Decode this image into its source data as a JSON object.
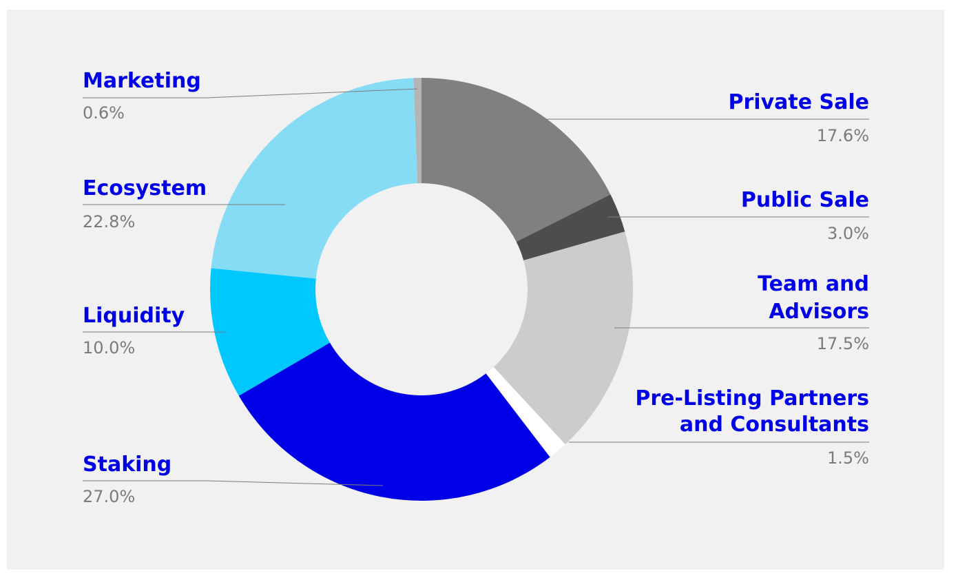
{
  "chart_data": {
    "type": "pie",
    "title": "",
    "donut": true,
    "slices": [
      {
        "label": "Private Sale",
        "value": 17.6,
        "value_label": "17.6%",
        "color": "#808080"
      },
      {
        "label": "Public Sale",
        "value": 3.0,
        "value_label": "3.0%",
        "color": "#4d4d4d"
      },
      {
        "label": "Team and Advisors",
        "value": 17.5,
        "value_label": "17.5%",
        "color": "#cccccc"
      },
      {
        "label": "Pre-Listing Partners and Consultants",
        "value": 1.5,
        "value_label": "1.5%",
        "color": "#ffffff"
      },
      {
        "label": "Staking",
        "value": 27.0,
        "value_label": "27.0%",
        "color": "#0000e6"
      },
      {
        "label": "Liquidity",
        "value": 10.0,
        "value_label": "10.0%",
        "color": "#00c8ff"
      },
      {
        "label": "Ecosystem",
        "value": 22.8,
        "value_label": "22.8%",
        "color": "#87dcf5"
      },
      {
        "label": "Marketing",
        "value": 0.6,
        "value_label": "0.6%",
        "color": "#b4b4b4"
      }
    ],
    "label_color": "#0000e6",
    "value_color": "#7b7b7b",
    "background": "#f1f1f1"
  }
}
